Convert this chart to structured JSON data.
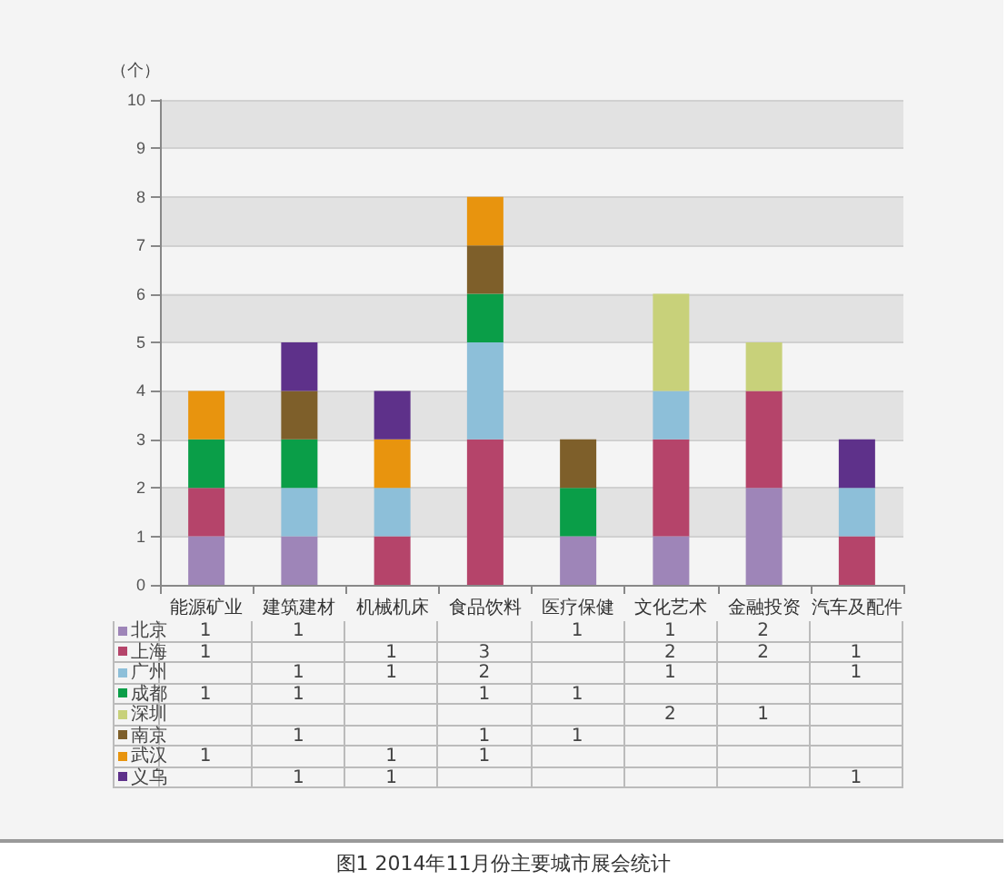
{
  "chart_data": {
    "type": "bar",
    "title": "图1 2014年11月份主要城市展会统计",
    "ylabel": "（个）",
    "stacked": true,
    "grid": true,
    "legend": "bottom left",
    "data_labels": true,
    "categories": [
      "能源矿业",
      "建筑建材",
      "机械机床",
      "食品饮料",
      "医疗保健",
      "文化艺术",
      "金融投资",
      "汽车及配件"
    ],
    "ylim": [
      0,
      10
    ],
    "yticks": [
      0,
      1,
      2,
      3,
      4,
      5,
      6,
      7,
      8,
      9,
      10
    ],
    "series": [
      {
        "name": "北京",
        "color": "#9e85b8",
        "values": [
          1,
          1,
          null,
          null,
          1,
          1,
          2,
          null
        ]
      },
      {
        "name": "上海",
        "color": "#b5446a",
        "values": [
          1,
          null,
          1,
          3,
          null,
          2,
          2,
          1
        ]
      },
      {
        "name": "广州",
        "color": "#8dbfd9",
        "values": [
          null,
          1,
          1,
          2,
          null,
          1,
          null,
          1
        ]
      },
      {
        "name": "成都",
        "color": "#0a9e48",
        "values": [
          1,
          1,
          null,
          1,
          1,
          null,
          null,
          null
        ]
      },
      {
        "name": "深圳",
        "color": "#c8d17a",
        "values": [
          null,
          null,
          null,
          null,
          null,
          2,
          1,
          null
        ]
      },
      {
        "name": "南京",
        "color": "#7e5f2a",
        "values": [
          null,
          1,
          null,
          1,
          1,
          null,
          null,
          null
        ]
      },
      {
        "name": "武汉",
        "color": "#e8940e",
        "values": [
          1,
          null,
          1,
          1,
          null,
          null,
          null,
          null
        ]
      },
      {
        "name": "义乌",
        "color": "#5e318a",
        "values": [
          null,
          1,
          1,
          null,
          null,
          null,
          null,
          1
        ]
      }
    ]
  }
}
